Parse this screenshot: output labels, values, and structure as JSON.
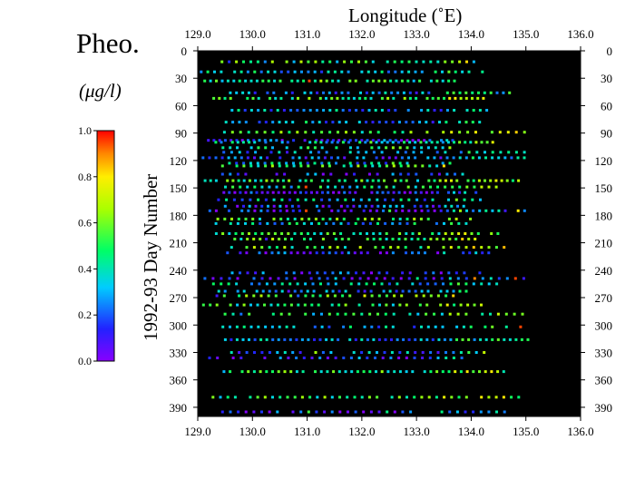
{
  "chart_data": {
    "type": "scatter",
    "title": "Pheo.",
    "unit_label": "(μg/l)",
    "xlabel": "Longitude (˚E)",
    "ylabel": "1992-93 Day Number",
    "xlim": [
      129.0,
      136.0
    ],
    "ylim": [
      0,
      400
    ],
    "x_ticks": [
      "129.0",
      "130.0",
      "131.0",
      "132.0",
      "133.0",
      "134.0",
      "135.0",
      "136.0"
    ],
    "y_ticks": [
      "0",
      "30",
      "60",
      "90",
      "120",
      "150",
      "180",
      "210",
      "240",
      "270",
      "300",
      "330",
      "360",
      "390"
    ],
    "colorbar": {
      "range": [
        0.0,
        1.0
      ],
      "ticks": [
        "0.0",
        "0.2",
        "0.4",
        "0.6",
        "0.8",
        "1.0"
      ],
      "colormap": "rainbow (violet to red)"
    },
    "plot_background": "#000000",
    "transect_days": [
      12,
      23,
      33,
      46,
      52,
      65,
      78,
      89,
      98,
      100,
      106,
      111,
      117,
      123,
      126,
      135,
      142,
      149,
      155,
      163,
      170,
      175,
      184,
      189,
      200,
      206,
      215,
      221,
      243,
      249,
      255,
      263,
      268,
      278,
      288,
      302,
      316,
      330,
      336,
      351,
      379,
      395
    ],
    "sample_points": [
      {
        "lon": 129.2,
        "day": 12,
        "value": 0.25
      },
      {
        "lon": 129.6,
        "day": 12,
        "value": 0.15
      },
      {
        "lon": 130.2,
        "day": 12,
        "value": 0.25
      },
      {
        "lon": 130.7,
        "day": 12,
        "value": 0.3
      },
      {
        "lon": 131.0,
        "day": 12,
        "value": 0.55
      },
      {
        "lon": 131.5,
        "day": 12,
        "value": 0.3
      },
      {
        "lon": 132.2,
        "day": 12,
        "value": 0.35
      },
      {
        "lon": 133.0,
        "day": 12,
        "value": 0.4
      },
      {
        "lon": 134.0,
        "day": 12,
        "value": 0.3
      },
      {
        "lon": 135.1,
        "day": 12,
        "value": 0.2
      },
      {
        "lon": 131.0,
        "day": 33,
        "value": 0.95
      },
      {
        "lon": 131.2,
        "day": 33,
        "value": 0.7
      },
      {
        "lon": 131.8,
        "day": 33,
        "value": 0.6
      },
      {
        "lon": 132.6,
        "day": 33,
        "value": 0.4
      },
      {
        "lon": 133.5,
        "day": 33,
        "value": 0.35
      },
      {
        "lon": 134.4,
        "day": 33,
        "value": 0.7
      },
      {
        "lon": 134.9,
        "day": 33,
        "value": 0.8
      },
      {
        "lon": 129.5,
        "day": 52,
        "value": 0.45
      },
      {
        "lon": 130.6,
        "day": 52,
        "value": 0.95
      },
      {
        "lon": 131.5,
        "day": 52,
        "value": 0.6
      },
      {
        "lon": 132.4,
        "day": 52,
        "value": 0.55
      },
      {
        "lon": 133.3,
        "day": 52,
        "value": 0.5
      },
      {
        "lon": 134.3,
        "day": 52,
        "value": 0.4
      },
      {
        "lon": 129.1,
        "day": 78,
        "value": 0.3
      },
      {
        "lon": 130.0,
        "day": 78,
        "value": 0.35
      },
      {
        "lon": 131.0,
        "day": 78,
        "value": 0.5
      },
      {
        "lon": 132.0,
        "day": 78,
        "value": 0.35
      },
      {
        "lon": 133.0,
        "day": 78,
        "value": 0.3
      },
      {
        "lon": 134.0,
        "day": 78,
        "value": 0.5
      },
      {
        "lon": 134.5,
        "day": 78,
        "value": 0.9
      },
      {
        "lon": 129.5,
        "day": 100,
        "value": 0.5
      },
      {
        "lon": 130.5,
        "day": 100,
        "value": 0.3
      },
      {
        "lon": 131.0,
        "day": 100,
        "value": 0.55
      },
      {
        "lon": 132.2,
        "day": 100,
        "value": 0.6
      },
      {
        "lon": 133.1,
        "day": 100,
        "value": 0.55
      },
      {
        "lon": 134.4,
        "day": 100,
        "value": 0.75
      },
      {
        "lon": 135.0,
        "day": 100,
        "value": 0.95
      },
      {
        "lon": 129.2,
        "day": 123,
        "value": 0.25
      },
      {
        "lon": 130.4,
        "day": 123,
        "value": 0.5
      },
      {
        "lon": 131.6,
        "day": 123,
        "value": 0.35
      },
      {
        "lon": 132.6,
        "day": 123,
        "value": 0.6
      },
      {
        "lon": 133.6,
        "day": 123,
        "value": 0.5
      },
      {
        "lon": 134.5,
        "day": 123,
        "value": 0.8
      },
      {
        "lon": 129.3,
        "day": 149,
        "value": 0.7
      },
      {
        "lon": 130.6,
        "day": 149,
        "value": 0.55
      },
      {
        "lon": 131.0,
        "day": 149,
        "value": 0.95
      },
      {
        "lon": 132.8,
        "day": 149,
        "value": 0.6
      },
      {
        "lon": 134.2,
        "day": 149,
        "value": 0.7
      },
      {
        "lon": 134.9,
        "day": 149,
        "value": 0.9
      },
      {
        "lon": 129.4,
        "day": 175,
        "value": 0.1
      },
      {
        "lon": 130.8,
        "day": 175,
        "value": 0.15
      },
      {
        "lon": 131.0,
        "day": 175,
        "value": 0.95
      },
      {
        "lon": 132.5,
        "day": 175,
        "value": 0.55
      },
      {
        "lon": 133.8,
        "day": 175,
        "value": 0.65
      },
      {
        "lon": 134.8,
        "day": 175,
        "value": 0.8
      },
      {
        "lon": 129.2,
        "day": 206,
        "value": 0.95
      },
      {
        "lon": 130.3,
        "day": 206,
        "value": 0.1
      },
      {
        "lon": 131.2,
        "day": 206,
        "value": 0.7
      },
      {
        "lon": 132.7,
        "day": 206,
        "value": 0.45
      },
      {
        "lon": 134.0,
        "day": 206,
        "value": 0.65
      },
      {
        "lon": 129.5,
        "day": 249,
        "value": 0.1
      },
      {
        "lon": 130.5,
        "day": 249,
        "value": 0.05
      },
      {
        "lon": 131.5,
        "day": 249,
        "value": 0.35
      },
      {
        "lon": 133.0,
        "day": 249,
        "value": 0.45
      },
      {
        "lon": 134.0,
        "day": 249,
        "value": 0.9
      },
      {
        "lon": 134.8,
        "day": 249,
        "value": 0.95
      },
      {
        "lon": 129.4,
        "day": 268,
        "value": 0.1
      },
      {
        "lon": 130.8,
        "day": 268,
        "value": 0.2
      },
      {
        "lon": 132.0,
        "day": 268,
        "value": 0.75
      },
      {
        "lon": 133.3,
        "day": 268,
        "value": 0.6
      },
      {
        "lon": 134.5,
        "day": 268,
        "value": 0.7
      },
      {
        "lon": 129.6,
        "day": 302,
        "value": 0.3
      },
      {
        "lon": 131.0,
        "day": 302,
        "value": 0.55
      },
      {
        "lon": 132.5,
        "day": 302,
        "value": 0.45
      },
      {
        "lon": 134.0,
        "day": 302,
        "value": 0.5
      },
      {
        "lon": 134.9,
        "day": 302,
        "value": 0.95
      },
      {
        "lon": 129.3,
        "day": 330,
        "value": 0.15
      },
      {
        "lon": 131.2,
        "day": 330,
        "value": 0.65
      },
      {
        "lon": 132.8,
        "day": 330,
        "value": 0.4
      },
      {
        "lon": 134.2,
        "day": 330,
        "value": 0.7
      },
      {
        "lon": 129.5,
        "day": 351,
        "value": 0.3
      },
      {
        "lon": 131.0,
        "day": 351,
        "value": 0.55
      },
      {
        "lon": 132.9,
        "day": 351,
        "value": 0.35
      },
      {
        "lon": 134.6,
        "day": 351,
        "value": 0.4
      },
      {
        "lon": 129.4,
        "day": 379,
        "value": 0.3
      },
      {
        "lon": 131.0,
        "day": 379,
        "value": 0.5
      },
      {
        "lon": 132.6,
        "day": 379,
        "value": 0.4
      },
      {
        "lon": 134.8,
        "day": 379,
        "value": 0.5
      },
      {
        "lon": 129.2,
        "day": 395,
        "value": 0.2
      },
      {
        "lon": 130.4,
        "day": 395,
        "value": 0.3
      },
      {
        "lon": 131.0,
        "day": 395,
        "value": 0.55
      },
      {
        "lon": 132.5,
        "day": 395,
        "value": 0.45
      },
      {
        "lon": 133.4,
        "day": 395,
        "value": 0.45
      }
    ]
  }
}
